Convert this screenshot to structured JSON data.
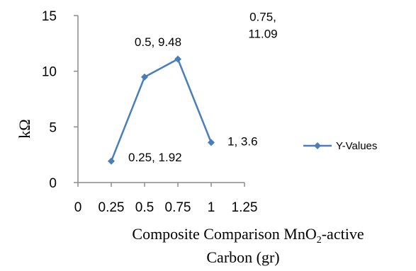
{
  "chart_data": {
    "type": "scatter",
    "series": [
      {
        "name": "Y-Values",
        "x": [
          0.25,
          0.5,
          0.75,
          1
        ],
        "y": [
          1.92,
          9.48,
          11.09,
          3.6
        ],
        "color": "#4a7ebb"
      }
    ],
    "data_labels": [
      "0.25, 1.92",
      "0.5, 9.48",
      "0.75, 11.09",
      "1, 3.6"
    ],
    "xlabel": "Composite Comparison MnO2-active Carbon (gr)",
    "ylabel": "kΩ",
    "xlim": [
      0,
      1.25
    ],
    "ylim": [
      0,
      15
    ],
    "x_ticks": [
      "0",
      "0.25",
      "0.5",
      "0.75",
      "1",
      "1.25"
    ],
    "y_ticks": [
      "0",
      "5",
      "10",
      "15"
    ],
    "grid": false,
    "legend_position": "right"
  },
  "axis_title": {
    "x_line1_a": "Composite Comparison MnO",
    "x_sub": "2",
    "x_line1_b": "-active",
    "x_line2": "Carbon (gr)"
  }
}
